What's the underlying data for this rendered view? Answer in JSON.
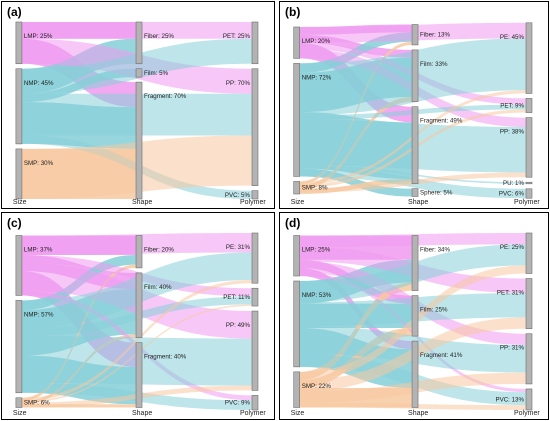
{
  "colors": {
    "LMP": "#f09af0",
    "NMP": "#86cfd8",
    "SMP": "#f7c9a0",
    "node": "#b3b3b3",
    "node_stroke": "#6e6e6e"
  },
  "chart_data": [
    {
      "type": "sankey",
      "panel_label": "(a)",
      "axis_labels": [
        "Size",
        "Shape",
        "Polymer"
      ],
      "columns": [
        [
          {
            "id": "LMP",
            "label": "LMP: 25%",
            "value": 25
          },
          {
            "id": "NMP",
            "label": "NMP: 45%",
            "value": 45
          },
          {
            "id": "SMP",
            "label": "SMP: 30%",
            "value": 30
          }
        ],
        [
          {
            "id": "Fiber",
            "label": "Fiber: 25%",
            "value": 25
          },
          {
            "id": "Film",
            "label": "Film: 5%",
            "value": 5
          },
          {
            "id": "Fragment",
            "label": "Fragment: 70%",
            "value": 70
          }
        ],
        [
          {
            "id": "PET",
            "label": "PET: 25%",
            "value": 25
          },
          {
            "id": "PP",
            "label": "PP: 70%",
            "value": 70
          },
          {
            "id": "PVC",
            "label": "PVC: 5%",
            "value": 5
          }
        ]
      ],
      "links": [
        {
          "source": "LMP",
          "target": "Fiber",
          "value": 10
        },
        {
          "source": "LMP",
          "target": "Fragment",
          "value": 15
        },
        {
          "source": "NMP",
          "target": "Fiber",
          "value": 15
        },
        {
          "source": "NMP",
          "target": "Film",
          "value": 5
        },
        {
          "source": "NMP",
          "target": "Fragment",
          "value": 25
        },
        {
          "source": "SMP",
          "target": "Fragment",
          "value": 30
        },
        {
          "source": "LMP",
          "target": "PET",
          "value": 10
        },
        {
          "source": "LMP",
          "target": "PP",
          "value": 15
        },
        {
          "source": "NMP",
          "target": "PET",
          "value": 15
        },
        {
          "source": "NMP",
          "target": "PP",
          "value": 25
        },
        {
          "source": "NMP",
          "target": "PVC",
          "value": 5
        },
        {
          "source": "SMP",
          "target": "PP",
          "value": 30
        }
      ]
    },
    {
      "type": "sankey",
      "panel_label": "(b)",
      "axis_labels": [
        "Size",
        "Shape",
        "Polymer"
      ],
      "columns": [
        [
          {
            "id": "LMP",
            "label": "LMP: 20%",
            "value": 20
          },
          {
            "id": "NMP",
            "label": "NMP: 72%",
            "value": 72
          },
          {
            "id": "SMP",
            "label": "SMP: 8%",
            "value": 8
          }
        ],
        [
          {
            "id": "Fiber",
            "label": "Fiber: 13%",
            "value": 13
          },
          {
            "id": "Film",
            "label": "Film: 33%",
            "value": 33
          },
          {
            "id": "Fragment",
            "label": "Fragment: 49%",
            "value": 49
          },
          {
            "id": "Sphere",
            "label": "Sphere: 5%",
            "value": 5
          }
        ],
        [
          {
            "id": "PE",
            "label": "PE: 45%",
            "value": 45
          },
          {
            "id": "PET",
            "label": "PET: 9%",
            "value": 9
          },
          {
            "id": "PP",
            "label": "PP: 38%",
            "value": 38
          },
          {
            "id": "PU",
            "label": "PU: 1%",
            "value": 1
          },
          {
            "id": "PVC",
            "label": "PVC: 6%",
            "value": 6
          }
        ]
      ],
      "links": [
        {
          "source": "LMP",
          "target": "Fiber",
          "value": 5
        },
        {
          "source": "LMP",
          "target": "Film",
          "value": 5
        },
        {
          "source": "LMP",
          "target": "Fragment",
          "value": 10
        },
        {
          "source": "NMP",
          "target": "Fiber",
          "value": 6
        },
        {
          "source": "NMP",
          "target": "Film",
          "value": 25
        },
        {
          "source": "NMP",
          "target": "Fragment",
          "value": 36
        },
        {
          "source": "NMP",
          "target": "Sphere",
          "value": 5
        },
        {
          "source": "SMP",
          "target": "Fiber",
          "value": 2
        },
        {
          "source": "SMP",
          "target": "Film",
          "value": 3
        },
        {
          "source": "SMP",
          "target": "Fragment",
          "value": 3
        },
        {
          "source": "LMP",
          "target": "PE",
          "value": 10
        },
        {
          "source": "LMP",
          "target": "PET",
          "value": 4
        },
        {
          "source": "LMP",
          "target": "PP",
          "value": 6
        },
        {
          "source": "NMP",
          "target": "PE",
          "value": 33
        },
        {
          "source": "NMP",
          "target": "PET",
          "value": 3
        },
        {
          "source": "NMP",
          "target": "PP",
          "value": 29
        },
        {
          "source": "NMP",
          "target": "PU",
          "value": 1
        },
        {
          "source": "NMP",
          "target": "PVC",
          "value": 6
        },
        {
          "source": "SMP",
          "target": "PE",
          "value": 2
        },
        {
          "source": "SMP",
          "target": "PET",
          "value": 2
        },
        {
          "source": "SMP",
          "target": "PP",
          "value": 3
        }
      ]
    },
    {
      "type": "sankey",
      "panel_label": "(c)",
      "axis_labels": [
        "Size",
        "Shape",
        "Polymer"
      ],
      "columns": [
        [
          {
            "id": "LMP",
            "label": "LMP: 37%",
            "value": 37
          },
          {
            "id": "NMP",
            "label": "NMP: 57%",
            "value": 57
          },
          {
            "id": "SMP",
            "label": "SMP: 6%",
            "value": 6
          }
        ],
        [
          {
            "id": "Fiber",
            "label": "Fiber: 20%",
            "value": 20
          },
          {
            "id": "Film",
            "label": "Film: 40%",
            "value": 40
          },
          {
            "id": "Fragment",
            "label": "Fragment: 40%",
            "value": 40
          }
        ],
        [
          {
            "id": "PE",
            "label": "PE: 31%",
            "value": 31
          },
          {
            "id": "PET",
            "label": "PET: 11%",
            "value": 11
          },
          {
            "id": "PP",
            "label": "PP: 49%",
            "value": 49
          },
          {
            "id": "PVC",
            "label": "PVC: 9%",
            "value": 9
          }
        ]
      ],
      "links": [
        {
          "source": "LMP",
          "target": "Fiber",
          "value": 12
        },
        {
          "source": "LMP",
          "target": "Film",
          "value": 10
        },
        {
          "source": "LMP",
          "target": "Fragment",
          "value": 15
        },
        {
          "source": "NMP",
          "target": "Fiber",
          "value": 6
        },
        {
          "source": "NMP",
          "target": "Film",
          "value": 28
        },
        {
          "source": "NMP",
          "target": "Fragment",
          "value": 23
        },
        {
          "source": "SMP",
          "target": "Fiber",
          "value": 2
        },
        {
          "source": "SMP",
          "target": "Film",
          "value": 2
        },
        {
          "source": "SMP",
          "target": "Fragment",
          "value": 2
        },
        {
          "source": "LMP",
          "target": "PE",
          "value": 12
        },
        {
          "source": "LMP",
          "target": "PET",
          "value": 5
        },
        {
          "source": "LMP",
          "target": "PP",
          "value": 17
        },
        {
          "source": "LMP",
          "target": "PVC",
          "value": 3
        },
        {
          "source": "NMP",
          "target": "PE",
          "value": 17
        },
        {
          "source": "NMP",
          "target": "PET",
          "value": 5
        },
        {
          "source": "NMP",
          "target": "PP",
          "value": 29
        },
        {
          "source": "NMP",
          "target": "PVC",
          "value": 6
        },
        {
          "source": "SMP",
          "target": "PE",
          "value": 2
        },
        {
          "source": "SMP",
          "target": "PET",
          "value": 1
        },
        {
          "source": "SMP",
          "target": "PP",
          "value": 3
        }
      ]
    },
    {
      "type": "sankey",
      "panel_label": "(d)",
      "axis_labels": [
        "Size",
        "Shape",
        "Polymer"
      ],
      "columns": [
        [
          {
            "id": "LMP",
            "label": "LMP: 25%",
            "value": 25
          },
          {
            "id": "NMP",
            "label": "NMP: 53%",
            "value": 53
          },
          {
            "id": "SMP",
            "label": "SMP: 22%",
            "value": 22
          }
        ],
        [
          {
            "id": "Fiber",
            "label": "Fiber: 34%",
            "value": 34
          },
          {
            "id": "Film",
            "label": "Film: 25%",
            "value": 25
          },
          {
            "id": "Fragment",
            "label": "Fragment: 41%",
            "value": 41
          }
        ],
        [
          {
            "id": "PE",
            "label": "PE: 25%",
            "value": 25
          },
          {
            "id": "PET",
            "label": "PET: 31%",
            "value": 31
          },
          {
            "id": "PP",
            "label": "PP: 31%",
            "value": 31
          },
          {
            "id": "PVC",
            "label": "PVC: 13%",
            "value": 13
          }
        ]
      ],
      "links": [
        {
          "source": "LMP",
          "target": "Fiber",
          "value": 15
        },
        {
          "source": "LMP",
          "target": "Film",
          "value": 5
        },
        {
          "source": "LMP",
          "target": "Fragment",
          "value": 5
        },
        {
          "source": "NMP",
          "target": "Fiber",
          "value": 14
        },
        {
          "source": "NMP",
          "target": "Film",
          "value": 15
        },
        {
          "source": "NMP",
          "target": "Fragment",
          "value": 24
        },
        {
          "source": "SMP",
          "target": "Fiber",
          "value": 5
        },
        {
          "source": "SMP",
          "target": "Film",
          "value": 5
        },
        {
          "source": "SMP",
          "target": "Fragment",
          "value": 12
        },
        {
          "source": "LMP",
          "target": "PE",
          "value": 7
        },
        {
          "source": "LMP",
          "target": "PET",
          "value": 9
        },
        {
          "source": "LMP",
          "target": "PP",
          "value": 7
        },
        {
          "source": "LMP",
          "target": "PVC",
          "value": 2
        },
        {
          "source": "NMP",
          "target": "PE",
          "value": 13
        },
        {
          "source": "NMP",
          "target": "PET",
          "value": 15
        },
        {
          "source": "NMP",
          "target": "PP",
          "value": 17
        },
        {
          "source": "NMP",
          "target": "PVC",
          "value": 8
        },
        {
          "source": "SMP",
          "target": "PE",
          "value": 5
        },
        {
          "source": "SMP",
          "target": "PET",
          "value": 7
        },
        {
          "source": "SMP",
          "target": "PP",
          "value": 7
        },
        {
          "source": "SMP",
          "target": "PVC",
          "value": 3
        }
      ]
    }
  ]
}
